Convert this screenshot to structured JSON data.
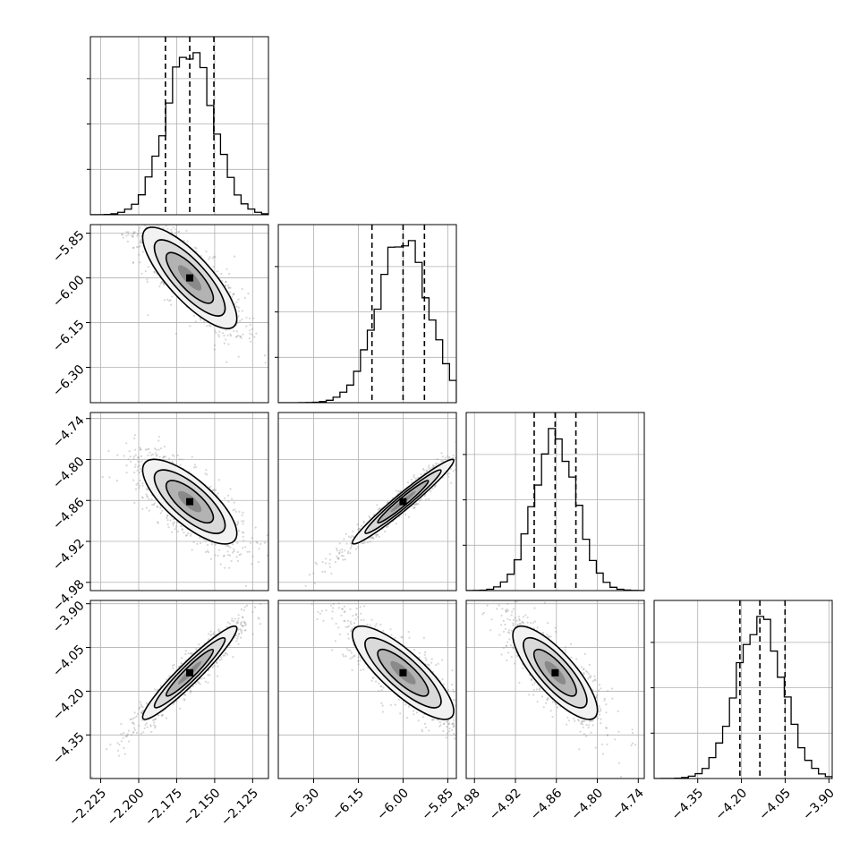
{
  "chart_data": {
    "type": "corner",
    "grid": true,
    "legend": "none",
    "colors": {
      "line": "#000000",
      "grid": "#b0b0b0",
      "scatter": "#8c8c8c"
    },
    "parameters": [
      {
        "ticks": [
          "−2.225",
          "−2.200",
          "−2.175",
          "−2.150",
          "−2.125"
        ],
        "tick_values": [
          -2.225,
          -2.2,
          -2.175,
          -2.15,
          -2.125
        ],
        "range": [
          -2.2318,
          -2.1146
        ],
        "quantiles": [
          -2.1824,
          -2.1664,
          -2.1505
        ],
        "mean": -2.1664,
        "sd": 0.0155,
        "hist_ticks_count": 3
      },
      {
        "ticks": [
          "−6.30",
          "−6.15",
          "−6.00",
          "−5.85"
        ],
        "tick_values": [
          -6.3,
          -6.15,
          -6.0,
          -5.85
        ],
        "range": [
          -6.4185,
          -5.8212
        ],
        "quantiles": [
          -6.1043,
          -6.0,
          -5.9283
        ],
        "mean": -6.0,
        "sd": 0.085,
        "hist_ticks_count": 3
      },
      {
        "ticks": [
          "−4.98",
          "−4.92",
          "−4.86",
          "−4.80",
          "−4.74"
        ],
        "tick_values": [
          -4.98,
          -4.92,
          -4.86,
          -4.8,
          -4.74
        ],
        "range": [
          -4.9921,
          -4.7312
        ],
        "quantiles": [
          -4.8925,
          -4.8618,
          -4.8314
        ],
        "mean": -4.8618,
        "sd": 0.031,
        "hist_ticks_count": 3
      },
      {
        "ticks": [
          "−4.35",
          "−4.20",
          "−4.05",
          "−3.90"
        ],
        "tick_values": [
          -4.35,
          -4.2,
          -4.05,
          -3.9
        ],
        "range": [
          -4.4995,
          -3.8887
        ],
        "quantiles": [
          -4.2053,
          -4.1368,
          -4.0505
        ],
        "mean": -4.1368,
        "sd": 0.08,
        "hist_ticks_count": 3
      }
    ],
    "correlations": [
      [
        1,
        -0.8,
        -0.75,
        0.95
      ],
      [
        -0.8,
        1,
        0.97,
        -0.82
      ],
      [
        -0.75,
        0.97,
        1,
        -0.8
      ],
      [
        0.95,
        -0.82,
        -0.8,
        1
      ]
    ]
  }
}
